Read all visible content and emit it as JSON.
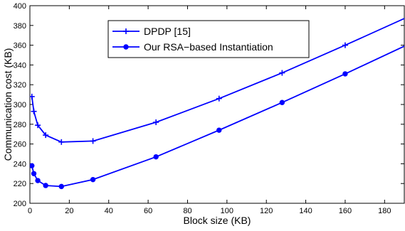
{
  "chart_data": {
    "type": "line",
    "title": "",
    "xlabel": "Block size (KB)",
    "ylabel": "Communication cost (KB)",
    "xlim": [
      0,
      190
    ],
    "ylim": [
      200,
      400
    ],
    "xticks": [
      0,
      20,
      40,
      60,
      80,
      100,
      120,
      140,
      160,
      180
    ],
    "yticks": [
      200,
      220,
      240,
      260,
      280,
      300,
      320,
      340,
      360,
      380,
      400
    ],
    "grid": false,
    "legend_position": "top-center",
    "color": "#0000ff",
    "series": [
      {
        "name": "DPDP [15]",
        "marker": "plus",
        "x": [
          1,
          2,
          4,
          8,
          16,
          32,
          64,
          96,
          128,
          160,
          190
        ],
        "y": [
          308,
          293,
          279,
          269,
          262,
          263,
          282,
          306,
          332,
          360,
          387
        ]
      },
      {
        "name": "Our RSA−based Instantiation",
        "marker": "circle",
        "x": [
          1,
          2,
          4,
          8,
          16,
          32,
          64,
          96,
          128,
          160,
          190
        ],
        "y": [
          238,
          230,
          223,
          218,
          217,
          224,
          247,
          274,
          302,
          331,
          359
        ]
      }
    ]
  }
}
